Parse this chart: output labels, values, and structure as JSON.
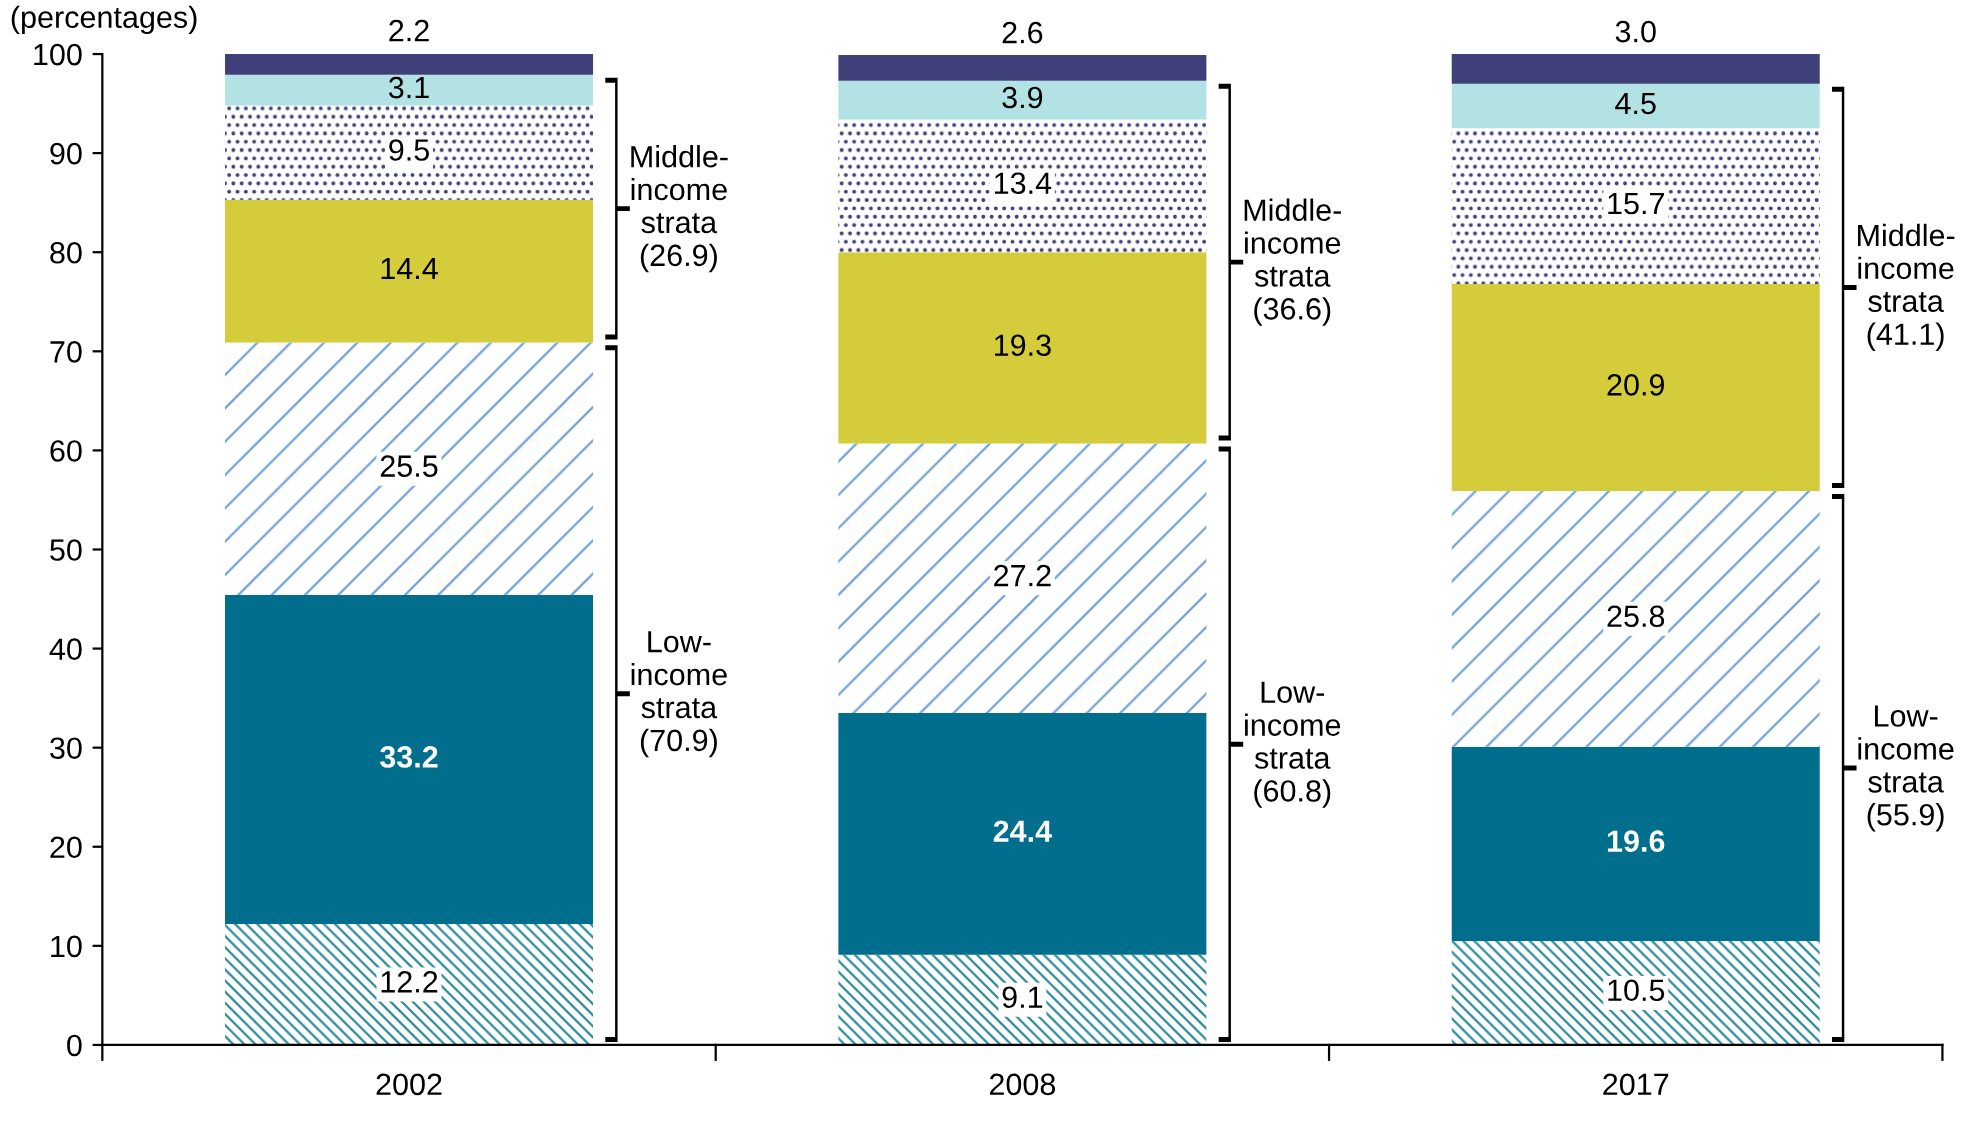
{
  "chart_data": {
    "type": "bar",
    "stacked": true,
    "data_labels": true,
    "grid": false,
    "legend": false,
    "categories": [
      "2002",
      "2008",
      "2017"
    ],
    "series": [
      {
        "color": "#2a8a96",
        "values": [
          12.2,
          9.1,
          10.5
        ]
      },
      {
        "color": "#006e8c",
        "values": [
          33.2,
          24.4,
          19.6
        ]
      },
      {
        "color": "#6c9fd8",
        "values": [
          25.5,
          27.2,
          25.8
        ]
      },
      {
        "color": "#d4cc3a",
        "values": [
          14.4,
          19.3,
          20.9
        ]
      },
      {
        "color": "#3f3f7a",
        "values": [
          9.5,
          13.4,
          15.7
        ]
      },
      {
        "color": "#b3e2e5",
        "values": [
          3.1,
          3.9,
          4.5
        ]
      },
      {
        "color": "#3f3f7a",
        "values": [
          2.2,
          2.6,
          3.0
        ],
        "value_labels": [
          "2.2",
          "2.6",
          "3.0"
        ]
      }
    ],
    "ylim": [
      0,
      100
    ],
    "yticks": [
      0,
      10,
      20,
      30,
      40,
      50,
      60,
      70,
      80,
      90,
      100
    ],
    "annotations": [
      "(percentages)",
      "Low-\nincome\nstrata\n(70.9)",
      "Middle-\nincome\nstrata\n(26.9)",
      "Low-\nincome\nstrata\n(60.8)",
      "Middle-\nincome\nstrata\n(36.6)",
      "Low-\nincome\nstrata\n(55.9)",
      "Middle-\nincome\nstrata\n(41.1)"
    ]
  }
}
